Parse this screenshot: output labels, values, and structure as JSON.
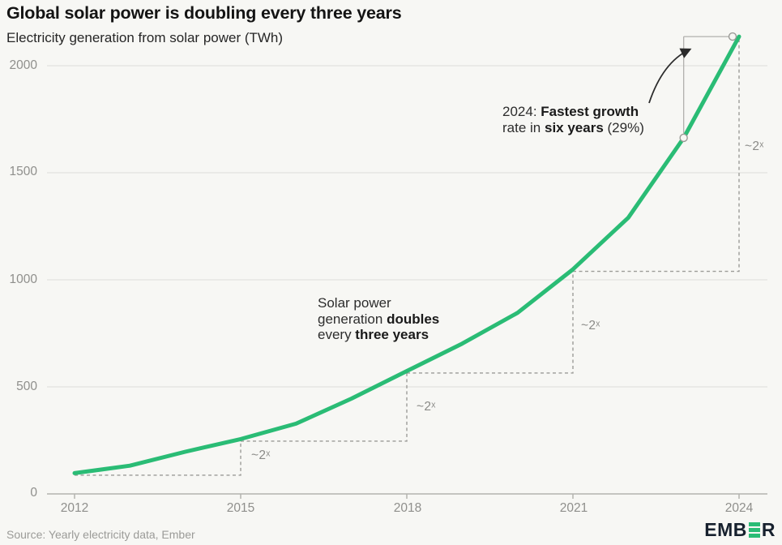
{
  "header": {
    "title": "Global solar power is doubling every three years",
    "subtitle": "Electricity generation from solar power (TWh)"
  },
  "axes": {
    "y_labels": [
      "2000",
      "1500",
      "1000",
      "500",
      "0"
    ],
    "x_labels": [
      "2012",
      "2015",
      "2018",
      "2021",
      "2024"
    ]
  },
  "annotations": {
    "doubles_note": [
      {
        "t": "Solar power\ngeneration ",
        "b": false
      },
      {
        "t": "doubles",
        "b": true
      },
      {
        "t": "\nevery ",
        "b": false
      },
      {
        "t": "three years",
        "b": true
      }
    ],
    "growth_note": [
      {
        "t": "2024: ",
        "b": false
      },
      {
        "t": "Fastest growth",
        "b": true
      },
      {
        "t": "\nrate in ",
        "b": false
      },
      {
        "t": "six years",
        "b": true
      },
      {
        "t": " (29%)",
        "b": false
      }
    ]
  },
  "footer": {
    "source": "Source: Yearly electricity data, Ember",
    "logo": {
      "left": "EMB",
      "right": "R",
      "name": "Ember"
    }
  },
  "chart_data": {
    "type": "line",
    "title": "Global solar power is doubling every three years",
    "ylabel": "Electricity generation from solar power (TWh)",
    "x": [
      2012,
      2013,
      2014,
      2015,
      2016,
      2017,
      2018,
      2019,
      2020,
      2021,
      2022,
      2023,
      2024
    ],
    "series": [
      {
        "name": "Solar electricity generation (TWh)",
        "values": [
          97,
          132,
          197,
          256,
          328,
          445,
          574,
          702,
          846,
          1049,
          1290,
          1663,
          2136
        ]
      }
    ],
    "yticks": [
      0,
      500,
      1000,
      1500,
      2000
    ],
    "xticks": [
      2012,
      2015,
      2018,
      2021,
      2024
    ],
    "ylim": [
      0,
      2150
    ],
    "grid": "horizontal",
    "legend": "none",
    "line_color": "#2abc75",
    "doubling_label": "~2ˣ",
    "doubling_steps": [
      {
        "from": 2012,
        "to": 2015
      },
      {
        "from": 2015,
        "to": 2018
      },
      {
        "from": 2018,
        "to": 2021
      },
      {
        "from": 2021,
        "to": 2024
      }
    ],
    "highlight": {
      "from_year": 2023,
      "to_year": 2024,
      "growth_rate_pct": 29
    }
  }
}
